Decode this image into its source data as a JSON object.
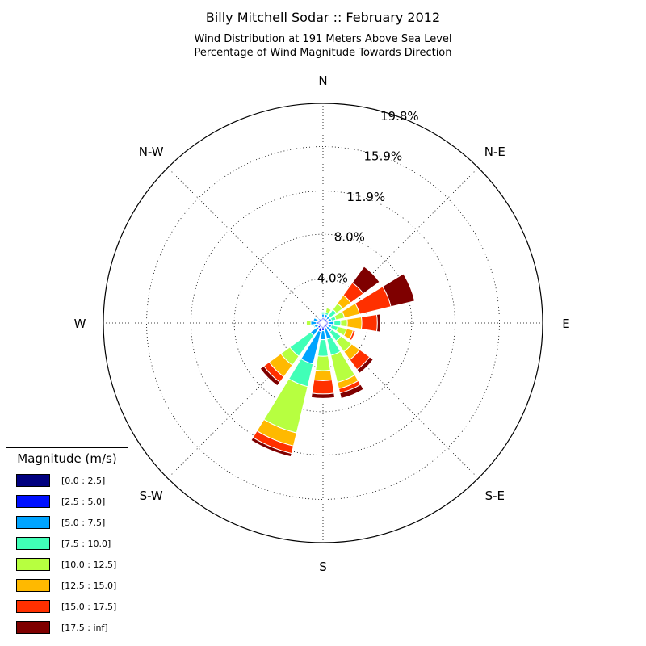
{
  "title": "Billy Mitchell Sodar :: February 2012",
  "subtitle_lines": [
    "Wind Distribution at 191 Meters Above Sea Level",
    "Percentage of Wind Magnitude Towards Direction"
  ],
  "legend": {
    "title": "Magnitude (m/s)",
    "items": [
      {
        "label": "[0.0 : 2.5]",
        "color": "#00007f"
      },
      {
        "label": "[2.5 : 5.0]",
        "color": "#0010ff"
      },
      {
        "label": "[5.0 : 7.5]",
        "color": "#00a4ff"
      },
      {
        "label": "[7.5 : 10.0]",
        "color": "#40ffb7"
      },
      {
        "label": "[10.0 : 12.5]",
        "color": "#b7ff40"
      },
      {
        "label": "[12.5 : 15.0]",
        "color": "#ffb900"
      },
      {
        "label": "[15.0 : 17.5]",
        "color": "#ff3000"
      },
      {
        "label": "[17.5 : inf]",
        "color": "#7f0000"
      }
    ]
  },
  "chart_data": {
    "type": "windrose",
    "title": "Billy Mitchell Sodar :: February 2012",
    "direction_labels": [
      "N",
      "N-E",
      "E",
      "S-E",
      "S",
      "S-W",
      "W",
      "N-W"
    ],
    "radial_ticks": [
      4.0,
      8.0,
      11.9,
      15.9,
      19.8
    ],
    "radial_tick_labels": [
      "4.0%",
      "8.0%",
      "11.9%",
      "15.9%",
      "19.8%"
    ],
    "rmax": 19.8,
    "grid": true,
    "legend_position": "bottom-left",
    "sector_directions_deg": [
      0,
      22.5,
      45,
      67.5,
      90,
      112.5,
      135,
      157.5,
      180,
      202.5,
      225,
      247.5,
      270,
      292.5,
      315,
      337.5
    ],
    "magnitude_bins": [
      "[0.0 : 2.5]",
      "[2.5 : 5.0]",
      "[5.0 : 7.5]",
      "[7.5 : 10.0]",
      "[10.0 : 12.5]",
      "[12.5 : 15.0]",
      "[15.0 : 17.5]",
      "[17.5 : inf]"
    ],
    "cumulative_percent": [
      [
        0.2,
        0.5,
        0.8,
        1.0,
        1.0,
        1.0,
        1.0,
        1.0
      ],
      [
        0.2,
        0.5,
        0.8,
        1.0,
        1.4,
        1.4,
        1.4,
        1.4
      ],
      [
        0.2,
        0.5,
        0.8,
        1.5,
        2.2,
        3.1,
        4.5,
        6.3
      ],
      [
        0.2,
        0.5,
        0.8,
        1.2,
        2.0,
        3.4,
        6.3,
        8.5
      ],
      [
        0.2,
        0.5,
        1.0,
        1.6,
        2.2,
        3.5,
        4.9,
        5.2
      ],
      [
        0.2,
        0.5,
        0.8,
        1.4,
        2.2,
        2.8,
        3.0,
        3.0
      ],
      [
        0.2,
        0.5,
        1.0,
        2.0,
        3.2,
        4.1,
        5.2,
        5.6
      ],
      [
        0.2,
        0.6,
        1.5,
        3.0,
        5.5,
        6.1,
        6.5,
        7.0
      ],
      [
        0.3,
        0.7,
        1.5,
        3.0,
        4.3,
        5.2,
        6.4,
        6.8
      ],
      [
        0.3,
        0.8,
        3.8,
        5.9,
        10.2,
        11.4,
        12.1,
        12.4
      ],
      [
        0.3,
        0.6,
        1.4,
        3.7,
        4.7,
        6.0,
        6.6,
        7.0
      ],
      [
        0.2,
        0.4,
        0.8,
        0.9,
        0.9,
        0.9,
        0.9,
        0.9
      ],
      [
        0.2,
        0.6,
        1.1,
        1.1,
        1.5,
        1.5,
        1.5,
        1.5
      ],
      [
        0.2,
        0.5,
        0.9,
        0.9,
        0.9,
        0.9,
        0.9,
        0.9
      ],
      [
        0.2,
        0.5,
        0.6,
        0.6,
        0.6,
        0.6,
        0.6,
        0.6
      ],
      [
        0.2,
        0.4,
        0.5,
        0.5,
        0.5,
        0.5,
        0.5,
        0.5
      ]
    ]
  }
}
